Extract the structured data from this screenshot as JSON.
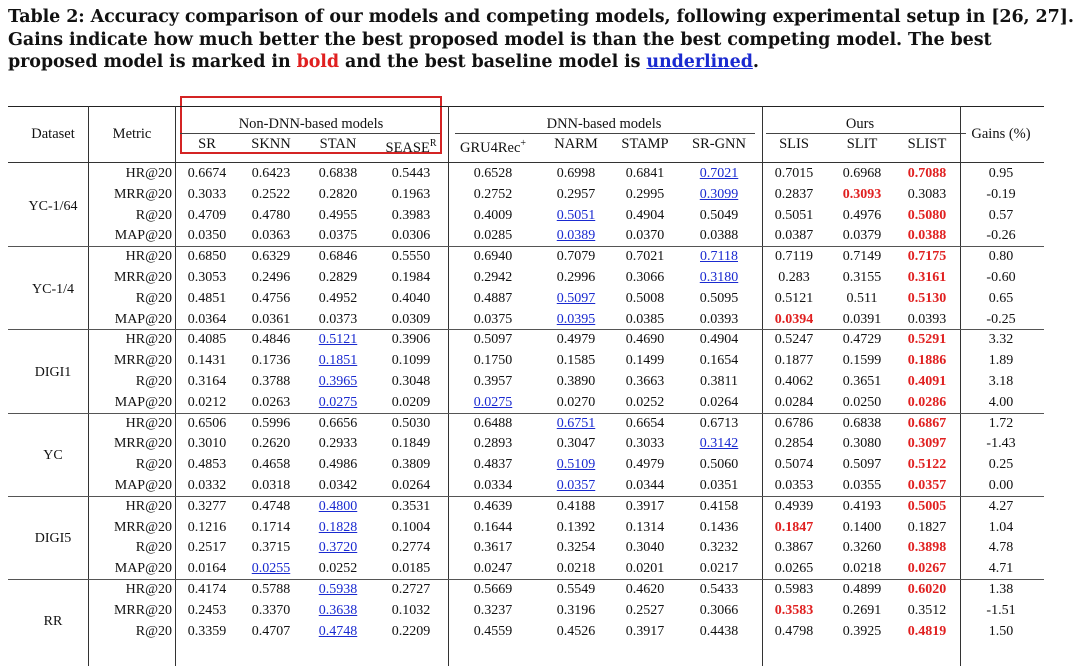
{
  "caption": {
    "part1": "Table 2: Accuracy comparison of our models and competing models, following experimental setup in [26, 27]. Gains indicate how much better the best proposed model is than the best competing model. The best proposed model is marked in ",
    "bold_word": "bold",
    "part2": " and the best baseline model is ",
    "underlined_word": "underlined",
    "part3": "."
  },
  "header": {
    "dataset": "Dataset",
    "metric": "Metric",
    "group_nondnn": "Non-DNN-based models",
    "group_dnn": "DNN-based models",
    "group_ours": "Ours",
    "gains": "Gains (%)",
    "models": [
      "SR",
      "SKNN",
      "STAN",
      "SEASE",
      "GRU4Rec",
      "NARM",
      "STAMP",
      "SR-GNN",
      "SLIS",
      "SLIT",
      "SLIST"
    ],
    "sease_sup": "R",
    "gru_sup": "+"
  },
  "colors": {
    "best": "#e02020",
    "baseline": "#1a2ad0",
    "highlight_box": "#d42424"
  },
  "rows": [
    {
      "dataset": "YC-1/64",
      "metric": "HR@20",
      "v": [
        "0.6674",
        "0.6423",
        "0.6838",
        "0.5443",
        "0.6528",
        "0.6998",
        "0.6841",
        "0.7021",
        "0.7015",
        "0.6968",
        "0.7088"
      ],
      "gain": "0.95",
      "best": 10,
      "base": 7
    },
    {
      "dataset": "",
      "metric": "MRR@20",
      "v": [
        "0.3033",
        "0.2522",
        "0.2820",
        "0.1963",
        "0.2752",
        "0.2957",
        "0.2995",
        "0.3099",
        "0.2837",
        "0.3093",
        "0.3083"
      ],
      "gain": "-0.19",
      "best": 9,
      "base": 7
    },
    {
      "dataset": "",
      "metric": "R@20",
      "v": [
        "0.4709",
        "0.4780",
        "0.4955",
        "0.3983",
        "0.4009",
        "0.5051",
        "0.4904",
        "0.5049",
        "0.5051",
        "0.4976",
        "0.5080"
      ],
      "gain": "0.57",
      "best": 10,
      "base": 5
    },
    {
      "dataset": "",
      "metric": "MAP@20",
      "v": [
        "0.0350",
        "0.0363",
        "0.0375",
        "0.0306",
        "0.0285",
        "0.0389",
        "0.0370",
        "0.0388",
        "0.0387",
        "0.0379",
        "0.0388"
      ],
      "gain": "-0.26",
      "best": 10,
      "base": 5
    },
    {
      "dataset": "YC-1/4",
      "metric": "HR@20",
      "v": [
        "0.6850",
        "0.6329",
        "0.6846",
        "0.5550",
        "0.6940",
        "0.7079",
        "0.7021",
        "0.7118",
        "0.7119",
        "0.7149",
        "0.7175"
      ],
      "gain": "0.80",
      "best": 10,
      "base": 7
    },
    {
      "dataset": "",
      "metric": "MRR@20",
      "v": [
        "0.3053",
        "0.2496",
        "0.2829",
        "0.1984",
        "0.2942",
        "0.2996",
        "0.3066",
        "0.3180",
        "0.283",
        "0.3155",
        "0.3161"
      ],
      "gain": "-0.60",
      "best": 10,
      "base": 7
    },
    {
      "dataset": "",
      "metric": "R@20",
      "v": [
        "0.4851",
        "0.4756",
        "0.4952",
        "0.4040",
        "0.4887",
        "0.5097",
        "0.5008",
        "0.5095",
        "0.5121",
        "0.511",
        "0.5130"
      ],
      "gain": "0.65",
      "best": 10,
      "base": 5
    },
    {
      "dataset": "",
      "metric": "MAP@20",
      "v": [
        "0.0364",
        "0.0361",
        "0.0373",
        "0.0309",
        "0.0375",
        "0.0395",
        "0.0385",
        "0.0393",
        "0.0394",
        "0.0391",
        "0.0393"
      ],
      "gain": "-0.25",
      "best": 8,
      "base": 5
    },
    {
      "dataset": "DIGI1",
      "metric": "HR@20",
      "v": [
        "0.4085",
        "0.4846",
        "0.5121",
        "0.3906",
        "0.5097",
        "0.4979",
        "0.4690",
        "0.4904",
        "0.5247",
        "0.4729",
        "0.5291"
      ],
      "gain": "3.32",
      "best": 10,
      "base": 2
    },
    {
      "dataset": "",
      "metric": "MRR@20",
      "v": [
        "0.1431",
        "0.1736",
        "0.1851",
        "0.1099",
        "0.1750",
        "0.1585",
        "0.1499",
        "0.1654",
        "0.1877",
        "0.1599",
        "0.1886"
      ],
      "gain": "1.89",
      "best": 10,
      "base": 2
    },
    {
      "dataset": "",
      "metric": "R@20",
      "v": [
        "0.3164",
        "0.3788",
        "0.3965",
        "0.3048",
        "0.3957",
        "0.3890",
        "0.3663",
        "0.3811",
        "0.4062",
        "0.3651",
        "0.4091"
      ],
      "gain": "3.18",
      "best": 10,
      "base": 2
    },
    {
      "dataset": "",
      "metric": "MAP@20",
      "v": [
        "0.0212",
        "0.0263",
        "0.0275",
        "0.0209",
        "0.0275",
        "0.0270",
        "0.0252",
        "0.0264",
        "0.0284",
        "0.0250",
        "0.0286"
      ],
      "gain": "4.00",
      "best": 10,
      "base": [
        2,
        4
      ]
    },
    {
      "dataset": "YC",
      "metric": "HR@20",
      "v": [
        "0.6506",
        "0.5996",
        "0.6656",
        "0.5030",
        "0.6488",
        "0.6751",
        "0.6654",
        "0.6713",
        "0.6786",
        "0.6838",
        "0.6867"
      ],
      "gain": "1.72",
      "best": 10,
      "base": 5
    },
    {
      "dataset": "",
      "metric": "MRR@20",
      "v": [
        "0.3010",
        "0.2620",
        "0.2933",
        "0.1849",
        "0.2893",
        "0.3047",
        "0.3033",
        "0.3142",
        "0.2854",
        "0.3080",
        "0.3097"
      ],
      "gain": "-1.43",
      "best": 10,
      "base": 7
    },
    {
      "dataset": "",
      "metric": "R@20",
      "v": [
        "0.4853",
        "0.4658",
        "0.4986",
        "0.3809",
        "0.4837",
        "0.5109",
        "0.4979",
        "0.5060",
        "0.5074",
        "0.5097",
        "0.5122"
      ],
      "gain": "0.25",
      "best": 10,
      "base": 5
    },
    {
      "dataset": "",
      "metric": "MAP@20",
      "v": [
        "0.0332",
        "0.0318",
        "0.0342",
        "0.0264",
        "0.0334",
        "0.0357",
        "0.0344",
        "0.0351",
        "0.0353",
        "0.0355",
        "0.0357"
      ],
      "gain": "0.00",
      "best": 10,
      "base": 5
    },
    {
      "dataset": "DIGI5",
      "metric": "HR@20",
      "v": [
        "0.3277",
        "0.4748",
        "0.4800",
        "0.3531",
        "0.4639",
        "0.4188",
        "0.3917",
        "0.4158",
        "0.4939",
        "0.4193",
        "0.5005"
      ],
      "gain": "4.27",
      "best": 10,
      "base": 2
    },
    {
      "dataset": "",
      "metric": "MRR@20",
      "v": [
        "0.1216",
        "0.1714",
        "0.1828",
        "0.1004",
        "0.1644",
        "0.1392",
        "0.1314",
        "0.1436",
        "0.1847",
        "0.1400",
        "0.1827"
      ],
      "gain": "1.04",
      "best": 8,
      "base": 2
    },
    {
      "dataset": "",
      "metric": "R@20",
      "v": [
        "0.2517",
        "0.3715",
        "0.3720",
        "0.2774",
        "0.3617",
        "0.3254",
        "0.3040",
        "0.3232",
        "0.3867",
        "0.3260",
        "0.3898"
      ],
      "gain": "4.78",
      "best": 10,
      "base": 2
    },
    {
      "dataset": "",
      "metric": "MAP@20",
      "v": [
        "0.0164",
        "0.0255",
        "0.0252",
        "0.0185",
        "0.0247",
        "0.0218",
        "0.0201",
        "0.0217",
        "0.0265",
        "0.0218",
        "0.0267"
      ],
      "gain": "4.71",
      "best": 10,
      "base": 1
    },
    {
      "dataset": "RR",
      "metric": "HR@20",
      "v": [
        "0.4174",
        "0.5788",
        "0.5938",
        "0.2727",
        "0.5669",
        "0.5549",
        "0.4620",
        "0.5433",
        "0.5983",
        "0.4899",
        "0.6020"
      ],
      "gain": "1.38",
      "best": 10,
      "base": 2
    },
    {
      "dataset": "",
      "metric": "MRR@20",
      "v": [
        "0.2453",
        "0.3370",
        "0.3638",
        "0.1032",
        "0.3237",
        "0.3196",
        "0.2527",
        "0.3066",
        "0.3583",
        "0.2691",
        "0.3512"
      ],
      "gain": "-1.51",
      "best": 8,
      "base": 2
    },
    {
      "dataset": "",
      "metric": "R@20",
      "v": [
        "0.3359",
        "0.4707",
        "0.4748",
        "0.2209",
        "0.4559",
        "0.4526",
        "0.3917",
        "0.4438",
        "0.4798",
        "0.3925",
        "0.4819"
      ],
      "gain": "1.50",
      "best": 10,
      "base": 2
    }
  ]
}
